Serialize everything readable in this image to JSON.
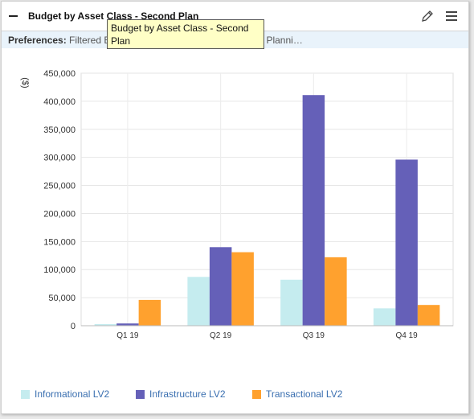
{
  "widget": {
    "title": "Budget by Asset Class - Second Plan",
    "preferences_label": "Preferences:",
    "preferences_value": "Filtered Budget by Asset Class - Second Plan Planni…",
    "tooltip": "Budget by Asset Class - Second Plan"
  },
  "icons": {
    "collapse": "minus-icon",
    "edit": "pencil-icon",
    "menu": "hamburger-menu-icon"
  },
  "chart_data": {
    "type": "bar",
    "title": "Budget by Asset Class - Second Plan",
    "ylabel": "($)",
    "xlabel": "",
    "categories": [
      "Q1 19",
      "Q2 19",
      "Q3 19",
      "Q4 19"
    ],
    "ylim": [
      0,
      450000
    ],
    "yticks": [
      "0",
      "50,000",
      "100,000",
      "150,000",
      "200,000",
      "250,000",
      "300,000",
      "350,000",
      "400,000",
      "450,000"
    ],
    "grid": true,
    "legend_position": "bottom-left",
    "series": [
      {
        "name": "Informational LV2",
        "color": "#c5ecef",
        "values": [
          3000,
          87000,
          82000,
          31000
        ]
      },
      {
        "name": "Infrastructure LV2",
        "color": "#6560b8",
        "values": [
          4000,
          140000,
          411000,
          296000
        ]
      },
      {
        "name": "Transactional LV2",
        "color": "#ffa12e",
        "values": [
          46000,
          131000,
          122000,
          37000
        ]
      }
    ]
  }
}
